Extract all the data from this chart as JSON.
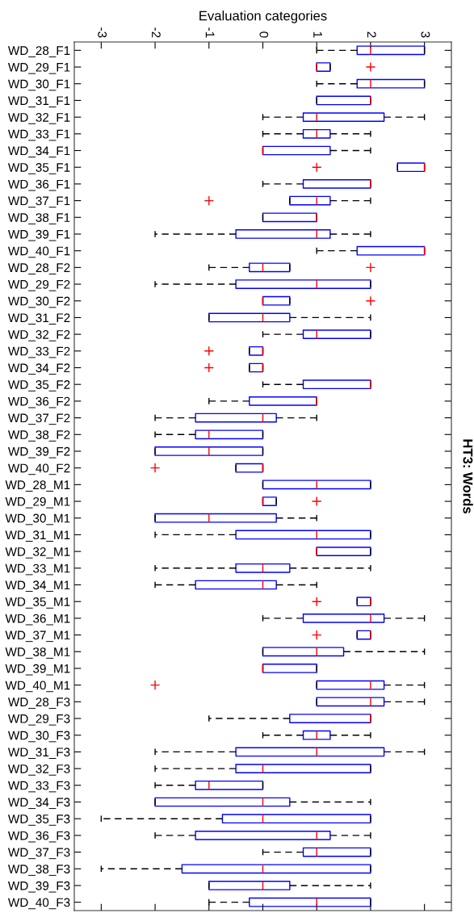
{
  "chart_data": {
    "type": "box",
    "orientation": "horizontal",
    "title": "HT3: Words",
    "xlabel": "Evaluation categories",
    "categories": [
      "WD_28_F1",
      "WD_29_F1",
      "WD_30_F1",
      "WD_31_F1",
      "WD_32_F1",
      "WD_33_F1",
      "WD_34_F1",
      "WD_35_F1",
      "WD_36_F1",
      "WD_37_F1",
      "WD_38_F1",
      "WD_39_F1",
      "WD_40_F1",
      "WD_28_F2",
      "WD_29_F2",
      "WD_30_F2",
      "WD_31_F2",
      "WD_32_F2",
      "WD_33_F2",
      "WD_34_F2",
      "WD_35_F2",
      "WD_36_F2",
      "WD_37_F2",
      "WD_38_F2",
      "WD_39_F2",
      "WD_40_F2",
      "WD_28_M1",
      "WD_29_M1",
      "WD_30_M1",
      "WD_31_M1",
      "WD_32_M1",
      "WD_33_M1",
      "WD_34_M1",
      "WD_35_M1",
      "WD_36_M1",
      "WD_37_M1",
      "WD_38_M1",
      "WD_39_M1",
      "WD_40_M1",
      "WD_28_F3",
      "WD_29_F3",
      "WD_30_F3",
      "WD_31_F3",
      "WD_32_F3",
      "WD_33_F3",
      "WD_34_F3",
      "WD_35_F3",
      "WD_36_F3",
      "WD_37_F3",
      "WD_38_F3",
      "WD_39_F3",
      "WD_40_F3"
    ],
    "boxes": [
      {
        "low": 1,
        "q1": 1.75,
        "median": 2,
        "q3": 3,
        "high": 3
      },
      {
        "low": 1,
        "q1": 1,
        "median": 1,
        "q3": 1.25,
        "high": 1.25,
        "outliers": [
          2
        ]
      },
      {
        "low": 1,
        "q1": 1.75,
        "median": 2,
        "q3": 3,
        "high": 3
      },
      {
        "low": 1,
        "q1": 1,
        "median": 2,
        "q3": 2,
        "high": 2
      },
      {
        "low": 0,
        "q1": 0.75,
        "median": 1,
        "q3": 2.25,
        "high": 3
      },
      {
        "low": 0,
        "q1": 0.75,
        "median": 1,
        "q3": 1.25,
        "high": 2
      },
      {
        "low": 0,
        "q1": 0,
        "median": 0,
        "q3": 1.25,
        "high": 2
      },
      {
        "low": 2.5,
        "q1": 2.5,
        "median": 3,
        "q3": 3,
        "high": 3,
        "outliers": [
          1
        ]
      },
      {
        "low": 0,
        "q1": 0.75,
        "median": 2,
        "q3": 2,
        "high": 2
      },
      {
        "low": 0.5,
        "q1": 0.5,
        "median": 1,
        "q3": 1.25,
        "high": 2,
        "outliers": [
          -1
        ]
      },
      {
        "low": 0,
        "q1": 0,
        "median": 1,
        "q3": 1,
        "high": 1
      },
      {
        "low": -2,
        "q1": -0.5,
        "median": 1,
        "q3": 1.25,
        "high": 2
      },
      {
        "low": 1,
        "q1": 1.75,
        "median": 3,
        "q3": 3,
        "high": 3
      },
      {
        "low": -1,
        "q1": -0.25,
        "median": 0,
        "q3": 0.5,
        "high": 0.5,
        "outliers": [
          2
        ]
      },
      {
        "low": -2,
        "q1": -0.5,
        "median": 1,
        "q3": 2,
        "high": 2
      },
      {
        "low": 0,
        "q1": 0,
        "median": 0,
        "q3": 0.5,
        "high": 0.5,
        "outliers": [
          2
        ]
      },
      {
        "low": -1,
        "q1": -1,
        "median": 0,
        "q3": 0.5,
        "high": 2
      },
      {
        "low": 0,
        "q1": 0.75,
        "median": 1,
        "q3": 2,
        "high": 2
      },
      {
        "low": -0.25,
        "q1": -0.25,
        "median": 0,
        "q3": 0,
        "high": 0,
        "outliers": [
          -1
        ]
      },
      {
        "low": -0.25,
        "q1": -0.25,
        "median": 0,
        "q3": 0,
        "high": 0,
        "outliers": [
          -1
        ]
      },
      {
        "low": 0,
        "q1": 0.75,
        "median": 2,
        "q3": 2,
        "high": 2
      },
      {
        "low": -1,
        "q1": -0.25,
        "median": 1,
        "q3": 1,
        "high": 1
      },
      {
        "low": -2,
        "q1": -1.25,
        "median": 0,
        "q3": 0.25,
        "high": 1
      },
      {
        "low": -2,
        "q1": -1.25,
        "median": -1,
        "q3": 0,
        "high": 0
      },
      {
        "low": -2,
        "q1": -2,
        "median": -1,
        "q3": 0,
        "high": 0
      },
      {
        "low": -0.5,
        "q1": -0.5,
        "median": 0,
        "q3": 0,
        "high": 0,
        "outliers": [
          -2
        ]
      },
      {
        "low": 0,
        "q1": 0,
        "median": 1,
        "q3": 2,
        "high": 2
      },
      {
        "low": 0,
        "q1": 0,
        "median": 0,
        "q3": 0.25,
        "high": 0.25,
        "outliers": [
          1
        ]
      },
      {
        "low": -2,
        "q1": -2,
        "median": -1,
        "q3": 0.25,
        "high": 1
      },
      {
        "low": -2,
        "q1": -0.5,
        "median": 1,
        "q3": 2,
        "high": 2
      },
      {
        "low": 1,
        "q1": 1,
        "median": 1,
        "q3": 2,
        "high": 2
      },
      {
        "low": -2,
        "q1": -0.5,
        "median": 0,
        "q3": 0.5,
        "high": 2
      },
      {
        "low": -2,
        "q1": -1.25,
        "median": 0,
        "q3": 0.25,
        "high": 1
      },
      {
        "low": 1.75,
        "q1": 1.75,
        "median": 2,
        "q3": 2,
        "high": 2,
        "outliers": [
          1
        ]
      },
      {
        "low": 0,
        "q1": 0.75,
        "median": 2,
        "q3": 2.25,
        "high": 3
      },
      {
        "low": 1.75,
        "q1": 1.75,
        "median": 2,
        "q3": 2,
        "high": 2,
        "outliers": [
          1
        ]
      },
      {
        "low": 0,
        "q1": 0,
        "median": 1,
        "q3": 1.5,
        "high": 3
      },
      {
        "low": 0,
        "q1": 0,
        "median": 0,
        "q3": 1,
        "high": 1
      },
      {
        "low": 1,
        "q1": 1,
        "median": 2,
        "q3": 2.25,
        "high": 3,
        "outliers": [
          -2
        ]
      },
      {
        "low": 1,
        "q1": 1,
        "median": 2,
        "q3": 2.25,
        "high": 3
      },
      {
        "low": -1,
        "q1": 0.5,
        "median": 2,
        "q3": 2,
        "high": 2
      },
      {
        "low": 0,
        "q1": 0.75,
        "median": 1,
        "q3": 1.25,
        "high": 2
      },
      {
        "low": -2,
        "q1": -0.5,
        "median": 1,
        "q3": 2.25,
        "high": 3
      },
      {
        "low": -2,
        "q1": -0.5,
        "median": 0,
        "q3": 2,
        "high": 2
      },
      {
        "low": -2,
        "q1": -1.25,
        "median": -1,
        "q3": 0,
        "high": 0
      },
      {
        "low": -2,
        "q1": -2,
        "median": 0,
        "q3": 0.5,
        "high": 2
      },
      {
        "low": -3,
        "q1": -0.75,
        "median": 0,
        "q3": 2,
        "high": 2
      },
      {
        "low": -2,
        "q1": -1.25,
        "median": 1,
        "q3": 1.25,
        "high": 2
      },
      {
        "low": 0,
        "q1": 0.75,
        "median": 1,
        "q3": 2,
        "high": 2
      },
      {
        "low": -3,
        "q1": -1.5,
        "median": 0,
        "q3": 2,
        "high": 2
      },
      {
        "low": -1,
        "q1": -1,
        "median": 0,
        "q3": 0.5,
        "high": 2
      },
      {
        "low": -1,
        "q1": -0.25,
        "median": 1,
        "q3": 2,
        "high": 2
      }
    ],
    "color": "#0000ff",
    "xlim": [
      -3.5,
      3.5
    ],
    "xticks": [
      -3,
      -2,
      -1,
      0,
      1,
      2,
      3
    ],
    "grid": false
  }
}
